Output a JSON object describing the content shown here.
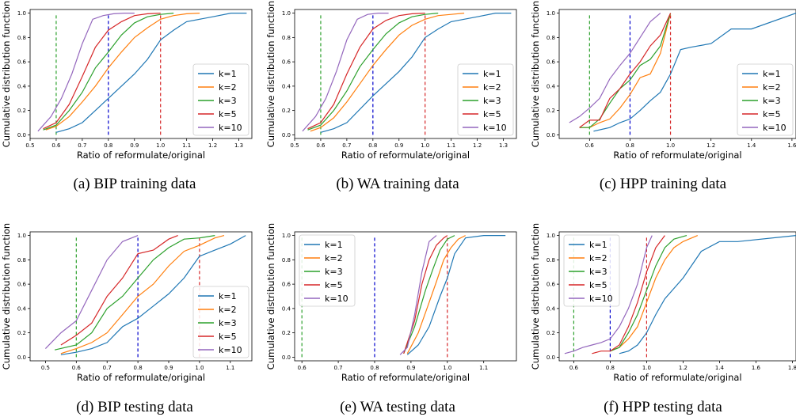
{
  "colors": {
    "k1": "#1f77b4",
    "k2": "#ff7f0e",
    "k3": "#2ca02c",
    "k5": "#d62728",
    "k10": "#9467bd",
    "line06": "#2ca02c",
    "line08": "#0000cc",
    "line10": "#d62728"
  },
  "chart_data": [
    {
      "type": "line",
      "caption": "(a)  BIP training data",
      "xlabel": "Ratio of reformulate/original",
      "ylabel": "Cumulative distribution function",
      "xlim": [
        0.5,
        1.35
      ],
      "ylim": [
        -0.03,
        1.03
      ],
      "xticks": [
        0.5,
        0.6,
        0.7,
        0.8,
        0.9,
        1.0,
        1.1,
        1.2,
        1.3
      ],
      "yticks": [
        0.0,
        0.2,
        0.4,
        0.6,
        0.8,
        1.0
      ],
      "vlines": [
        0.6,
        0.8,
        1.0
      ],
      "legend": "lower-right",
      "series": [
        {
          "name": "k=1",
          "x": [
            0.6,
            0.65,
            0.7,
            0.8,
            0.9,
            0.95,
            1.0,
            1.05,
            1.1,
            1.2,
            1.27,
            1.33
          ],
          "y": [
            0.02,
            0.05,
            0.1,
            0.3,
            0.5,
            0.62,
            0.78,
            0.86,
            0.93,
            0.97,
            1.0,
            1.0
          ]
        },
        {
          "name": "k=2",
          "x": [
            0.56,
            0.6,
            0.65,
            0.7,
            0.75,
            0.8,
            0.85,
            0.9,
            0.95,
            1.0,
            1.05,
            1.1,
            1.15
          ],
          "y": [
            0.04,
            0.07,
            0.15,
            0.27,
            0.4,
            0.55,
            0.68,
            0.8,
            0.88,
            0.95,
            0.98,
            0.995,
            1.0
          ]
        },
        {
          "name": "k=3",
          "x": [
            0.55,
            0.6,
            0.65,
            0.7,
            0.75,
            0.8,
            0.85,
            0.9,
            0.95,
            1.0,
            1.05
          ],
          "y": [
            0.04,
            0.08,
            0.2,
            0.35,
            0.55,
            0.68,
            0.82,
            0.92,
            0.97,
            0.99,
            1.0
          ]
        },
        {
          "name": "k=5",
          "x": [
            0.55,
            0.6,
            0.65,
            0.7,
            0.75,
            0.8,
            0.85,
            0.9,
            0.95,
            1.0
          ],
          "y": [
            0.05,
            0.1,
            0.25,
            0.48,
            0.72,
            0.86,
            0.93,
            0.98,
            0.995,
            1.0
          ]
        },
        {
          "name": "k=10",
          "x": [
            0.53,
            0.58,
            0.62,
            0.66,
            0.7,
            0.74,
            0.78,
            0.82,
            0.86,
            0.9
          ],
          "y": [
            0.03,
            0.15,
            0.3,
            0.5,
            0.75,
            0.95,
            0.98,
            0.995,
            1.0,
            1.0
          ]
        }
      ]
    },
    {
      "type": "line",
      "caption": "(b)  WA training data",
      "xlabel": "Ratio of reformulate/original",
      "ylabel": "Cumulative distribution function",
      "xlim": [
        0.5,
        1.35
      ],
      "ylim": [
        -0.03,
        1.03
      ],
      "xticks": [
        0.5,
        0.6,
        0.7,
        0.8,
        0.9,
        1.0,
        1.1,
        1.2,
        1.3
      ],
      "yticks": [
        0.0,
        0.2,
        0.4,
        0.6,
        0.8,
        1.0
      ],
      "vlines": [
        0.6,
        0.8,
        1.0
      ],
      "legend": "lower-right",
      "series": [
        {
          "name": "k=1",
          "x": [
            0.6,
            0.65,
            0.7,
            0.8,
            0.9,
            0.95,
            1.0,
            1.05,
            1.1,
            1.2,
            1.27,
            1.33
          ],
          "y": [
            0.02,
            0.05,
            0.1,
            0.32,
            0.52,
            0.64,
            0.8,
            0.87,
            0.93,
            0.97,
            1.0,
            1.0
          ]
        },
        {
          "name": "k=2",
          "x": [
            0.56,
            0.6,
            0.65,
            0.7,
            0.75,
            0.8,
            0.85,
            0.9,
            0.95,
            1.0,
            1.05,
            1.1,
            1.15
          ],
          "y": [
            0.03,
            0.06,
            0.14,
            0.27,
            0.42,
            0.57,
            0.7,
            0.82,
            0.9,
            0.95,
            0.98,
            0.99,
            1.0
          ]
        },
        {
          "name": "k=3",
          "x": [
            0.55,
            0.6,
            0.65,
            0.7,
            0.75,
            0.8,
            0.85,
            0.9,
            0.95,
            1.0,
            1.05
          ],
          "y": [
            0.04,
            0.08,
            0.2,
            0.36,
            0.56,
            0.7,
            0.83,
            0.92,
            0.97,
            0.99,
            1.0
          ]
        },
        {
          "name": "k=5",
          "x": [
            0.55,
            0.6,
            0.65,
            0.7,
            0.75,
            0.8,
            0.85,
            0.9,
            0.95,
            1.0
          ],
          "y": [
            0.05,
            0.1,
            0.25,
            0.5,
            0.72,
            0.87,
            0.94,
            0.98,
            0.995,
            1.0
          ]
        },
        {
          "name": "k=10",
          "x": [
            0.53,
            0.58,
            0.62,
            0.66,
            0.7,
            0.74,
            0.78,
            0.82,
            0.86
          ],
          "y": [
            0.03,
            0.15,
            0.3,
            0.52,
            0.78,
            0.95,
            0.99,
            1.0,
            1.0
          ]
        }
      ]
    },
    {
      "type": "line",
      "caption": "(c)  HPP training data",
      "xlabel": "Ratio of reformulate/original",
      "ylabel": "Cumulative distribution function",
      "xlim": [
        0.45,
        1.62
      ],
      "ylim": [
        -0.03,
        1.03
      ],
      "xticks": [
        0.6,
        0.8,
        1.0,
        1.2,
        1.4,
        1.6
      ],
      "yticks": [
        0.0,
        0.2,
        0.4,
        0.6,
        0.8,
        1.0
      ],
      "vlines": [
        0.6,
        0.8,
        1.0
      ],
      "legend": "lower-right",
      "series": [
        {
          "name": "k=1",
          "x": [
            0.62,
            0.7,
            0.75,
            0.8,
            0.85,
            0.9,
            0.95,
            1.0,
            1.05,
            1.1,
            1.2,
            1.3,
            1.4,
            1.62
          ],
          "y": [
            0.03,
            0.06,
            0.1,
            0.13,
            0.2,
            0.28,
            0.35,
            0.5,
            0.7,
            0.72,
            0.75,
            0.87,
            0.87,
            1.0
          ]
        },
        {
          "name": "k=2",
          "x": [
            0.55,
            0.6,
            0.65,
            0.7,
            0.75,
            0.8,
            0.85,
            0.9,
            0.95,
            1.0
          ],
          "y": [
            0.06,
            0.06,
            0.1,
            0.13,
            0.22,
            0.33,
            0.47,
            0.5,
            0.67,
            1.0
          ]
        },
        {
          "name": "k=3",
          "x": [
            0.55,
            0.6,
            0.65,
            0.7,
            0.75,
            0.8,
            0.85,
            0.9,
            0.95,
            1.0
          ],
          "y": [
            0.06,
            0.06,
            0.13,
            0.26,
            0.38,
            0.45,
            0.57,
            0.62,
            0.73,
            1.0
          ]
        },
        {
          "name": "k=5",
          "x": [
            0.55,
            0.6,
            0.65,
            0.7,
            0.75,
            0.8,
            0.85,
            0.9,
            0.95,
            1.0
          ],
          "y": [
            0.06,
            0.12,
            0.12,
            0.3,
            0.38,
            0.5,
            0.6,
            0.73,
            0.82,
            1.0
          ]
        },
        {
          "name": "k=10",
          "x": [
            0.5,
            0.55,
            0.6,
            0.65,
            0.7,
            0.75,
            0.8,
            0.85,
            0.9,
            0.95
          ],
          "y": [
            0.1,
            0.15,
            0.22,
            0.3,
            0.46,
            0.57,
            0.67,
            0.8,
            0.93,
            1.0
          ]
        }
      ]
    },
    {
      "type": "line",
      "caption": "(d)  BIP testing data",
      "xlabel": "Ratio of reformulate/original",
      "ylabel": "Cumulative distribution function",
      "xlim": [
        0.45,
        1.17
      ],
      "ylim": [
        -0.03,
        1.03
      ],
      "xticks": [
        0.5,
        0.6,
        0.7,
        0.8,
        0.9,
        1.0,
        1.1
      ],
      "yticks": [
        0.0,
        0.2,
        0.4,
        0.6,
        0.8,
        1.0
      ],
      "vlines": [
        0.6,
        0.8,
        1.0
      ],
      "legend": "lower-right",
      "series": [
        {
          "name": "k=1",
          "x": [
            0.55,
            0.6,
            0.65,
            0.7,
            0.75,
            0.8,
            0.85,
            0.9,
            0.95,
            1.0,
            1.05,
            1.1,
            1.15
          ],
          "y": [
            0.02,
            0.04,
            0.07,
            0.12,
            0.25,
            0.32,
            0.42,
            0.52,
            0.65,
            0.83,
            0.88,
            0.93,
            1.0
          ]
        },
        {
          "name": "k=2",
          "x": [
            0.55,
            0.6,
            0.65,
            0.7,
            0.75,
            0.8,
            0.85,
            0.9,
            0.95,
            1.0,
            1.05,
            1.08
          ],
          "y": [
            0.03,
            0.07,
            0.12,
            0.2,
            0.35,
            0.5,
            0.6,
            0.75,
            0.87,
            0.92,
            0.98,
            1.0
          ]
        },
        {
          "name": "k=3",
          "x": [
            0.53,
            0.6,
            0.65,
            0.7,
            0.75,
            0.8,
            0.85,
            0.9,
            0.95,
            1.0,
            1.05
          ],
          "y": [
            0.06,
            0.1,
            0.2,
            0.4,
            0.5,
            0.65,
            0.8,
            0.9,
            0.97,
            0.98,
            1.0
          ]
        },
        {
          "name": "k=5",
          "x": [
            0.55,
            0.6,
            0.65,
            0.7,
            0.75,
            0.8,
            0.85,
            0.9,
            0.93
          ],
          "y": [
            0.1,
            0.18,
            0.28,
            0.5,
            0.65,
            0.85,
            0.88,
            0.97,
            1.0
          ]
        },
        {
          "name": "k=10",
          "x": [
            0.5,
            0.55,
            0.6,
            0.65,
            0.7,
            0.75,
            0.78,
            0.8
          ],
          "y": [
            0.07,
            0.2,
            0.3,
            0.55,
            0.8,
            0.95,
            0.98,
            1.0
          ]
        }
      ]
    },
    {
      "type": "line",
      "caption": "(e)  WA testing data",
      "xlabel": "Ratio of reformulate/original",
      "ylabel": "Cumulative distribution function",
      "xlim": [
        0.58,
        1.19
      ],
      "ylim": [
        -0.03,
        1.03
      ],
      "xticks": [
        0.6,
        0.7,
        0.8,
        0.9,
        1.0,
        1.1
      ],
      "yticks": [
        0.0,
        0.2,
        0.4,
        0.6,
        0.8,
        1.0
      ],
      "vlines": [
        0.6,
        0.8,
        1.0
      ],
      "legend": "upper-left",
      "series": [
        {
          "name": "k=1",
          "x": [
            0.89,
            0.92,
            0.95,
            0.98,
            1.0,
            1.02,
            1.05,
            1.1,
            1.16
          ],
          "y": [
            0.02,
            0.1,
            0.25,
            0.5,
            0.65,
            0.85,
            0.98,
            1.0,
            1.0
          ]
        },
        {
          "name": "k=2",
          "x": [
            0.89,
            0.92,
            0.95,
            0.97,
            0.99,
            1.01,
            1.03,
            1.05
          ],
          "y": [
            0.03,
            0.2,
            0.45,
            0.62,
            0.8,
            0.9,
            0.97,
            1.0
          ]
        },
        {
          "name": "k=3",
          "x": [
            0.88,
            0.91,
            0.94,
            0.96,
            0.98,
            1.0,
            1.02
          ],
          "y": [
            0.03,
            0.25,
            0.55,
            0.72,
            0.88,
            0.97,
            1.0
          ]
        },
        {
          "name": "k=5",
          "x": [
            0.88,
            0.91,
            0.93,
            0.95,
            0.97,
            0.99,
            1.0
          ],
          "y": [
            0.03,
            0.3,
            0.6,
            0.8,
            0.92,
            0.98,
            1.0
          ]
        },
        {
          "name": "k=10",
          "x": [
            0.87,
            0.89,
            0.91,
            0.93,
            0.95,
            0.97
          ],
          "y": [
            0.02,
            0.08,
            0.35,
            0.7,
            0.95,
            1.0
          ]
        }
      ]
    },
    {
      "type": "line",
      "caption": "(f)  HPP testing data",
      "xlabel": "Ratio of reformulate/original",
      "ylabel": "Cumulative distribution function",
      "xlim": [
        0.52,
        1.82
      ],
      "ylim": [
        -0.03,
        1.03
      ],
      "xticks": [
        0.6,
        0.8,
        1.0,
        1.2,
        1.4,
        1.6,
        1.8
      ],
      "yticks": [
        0.0,
        0.2,
        0.4,
        0.6,
        0.8,
        1.0
      ],
      "vlines": [
        0.6,
        0.8,
        1.0
      ],
      "legend": "upper-left",
      "series": [
        {
          "name": "k=1",
          "x": [
            0.85,
            0.9,
            0.95,
            1.0,
            1.05,
            1.1,
            1.2,
            1.3,
            1.4,
            1.5,
            1.82
          ],
          "y": [
            0.03,
            0.05,
            0.1,
            0.2,
            0.35,
            0.48,
            0.65,
            0.87,
            0.95,
            0.95,
            1.0
          ]
        },
        {
          "name": "k=2",
          "x": [
            0.8,
            0.85,
            0.9,
            0.95,
            1.0,
            1.05,
            1.1,
            1.15,
            1.2,
            1.28
          ],
          "y": [
            0.05,
            0.08,
            0.15,
            0.25,
            0.45,
            0.65,
            0.8,
            0.9,
            0.95,
            1.0
          ]
        },
        {
          "name": "k=3",
          "x": [
            0.8,
            0.85,
            0.9,
            0.95,
            1.0,
            1.05,
            1.1,
            1.15,
            1.22
          ],
          "y": [
            0.05,
            0.08,
            0.2,
            0.35,
            0.55,
            0.75,
            0.9,
            0.97,
            1.0
          ]
        },
        {
          "name": "k=5",
          "x": [
            0.7,
            0.75,
            0.8,
            0.85,
            0.9,
            0.95,
            1.0,
            1.05,
            1.1
          ],
          "y": [
            0.03,
            0.05,
            0.05,
            0.1,
            0.25,
            0.45,
            0.7,
            0.9,
            1.0
          ]
        },
        {
          "name": "k=10",
          "x": [
            0.55,
            0.6,
            0.65,
            0.7,
            0.75,
            0.8,
            0.85,
            0.9,
            0.95,
            1.0,
            1.03
          ],
          "y": [
            0.03,
            0.05,
            0.08,
            0.1,
            0.12,
            0.15,
            0.25,
            0.4,
            0.6,
            0.9,
            1.0
          ]
        }
      ]
    }
  ]
}
